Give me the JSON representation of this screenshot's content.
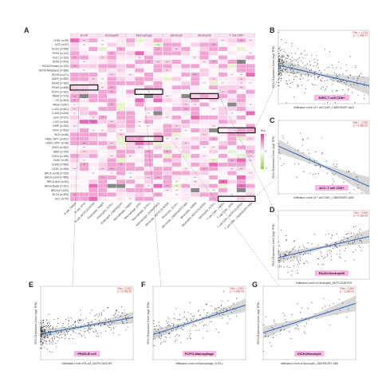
{
  "panel_letters": {
    "A": "A",
    "B": "B",
    "C": "C",
    "D": "D",
    "E": "E",
    "F": "F",
    "G": "G"
  },
  "heatmap": {
    "column_groups": [
      "B cell",
      "Eosinophil",
      "Macrophage",
      "Monocyte",
      "Neutrophil",
      "T cell CD8+"
    ],
    "group_spans": [
      3,
      3,
      4,
      3,
      3,
      4
    ],
    "rows": [
      "CHOL (n=36)",
      "UCS (n=57)",
      "UCEC (n=545)",
      "THYM (n=120)",
      "TGCT (n=150)",
      "STAD (n=415)",
      "SKCM-Primary (n=103)",
      "SKCM-Metastasis (n=368)",
      "SKCM (n=471)",
      "SARC (n=260)",
      "READ (n=166)",
      "PRAD (n=498)",
      "PCPG (n=181)",
      "PAAD (n=179)",
      "OV (n=303)",
      "MESO (n=87)",
      "LUSC (n=501)",
      "LUAD (n=515)",
      "LIHC (n=371)",
      "LGG (n=516)",
      "KIRP (n=290)",
      "KIRC (n=533)",
      "KICH (n=66)",
      "HNSC-HPV- (n=422)",
      "HNSC-HPV+ (n=98)",
      "HNSC (n=522)",
      "GBM (n=153)",
      "ESCA (n=185)",
      "DLBC (n=48)",
      "COAD (n=458)",
      "CESC (n=306)",
      "BRCA-LumB (n=219)",
      "BRCA-LumA (n=568)",
      "BRCA-Her2 (n=82)",
      "BRCA-Basal (n=191)",
      "BRCA (n=1100)",
      "BLCA (n=408)",
      "ACC (n=79)"
    ],
    "columns": [
      "B cell_TIMER",
      "B cell_EPIC",
      "B cell_MCPCOUNTER",
      "Eosinophil_TIMER",
      "Eosinophil_XCELL",
      "Eosinophil_CIBERSORT",
      "Macrophage_TIMER",
      "Macrophage_EPIC",
      "Macrophage_XCELL",
      "Macrophage_QUANTISEQ",
      "Monocyte_MCPCOUNTER",
      "Monocyte_XCELL",
      "Monocyte_CIBERSORT-ABS",
      "Neutrophil_TIMER",
      "Neutrophil_MCPCOUNTER",
      "Neutrophil_XCELL",
      "T cell CD8+_TIMER",
      "T cell CD8+_EPIC",
      "T cell CD8+_MCPCOUNTER",
      "T cell CD8+_CIBERSORT-ABS"
    ],
    "legend": {
      "title": "Rho",
      "max": "1",
      "zero": "0",
      "min": "-1"
    }
  },
  "scatter_panels": [
    {
      "id": "B",
      "label": "KIRC-T cell CD8+",
      "xlabel": "Infiltration Level of T cell CD8+_CIBERSORT-ABS",
      "ylabel": "FDX1 Expression Level (log2 TPM)",
      "annot1": "Rho = -0.234",
      "annot2": "p = 1.45e-07",
      "xlim": [
        0,
        0.25
      ],
      "ylim": [
        2.5,
        6.5
      ],
      "n": 320,
      "slope": -4.5,
      "intercept": 4.6,
      "spread": 0.55
    },
    {
      "id": "C",
      "label": "ACC-T cell CD8+",
      "xlabel": "Infiltration Level of T cell CD8+_CIBERSORT-ABS",
      "ylabel": "FDX1 Expression Level (log2 TPM)",
      "annot1": "Rho = -0.335",
      "annot2": "p = 3.45e-03",
      "xlim": [
        0,
        0.04
      ],
      "ylim": [
        3,
        7
      ],
      "n": 70,
      "slope": -55,
      "intercept": 5.6,
      "spread": 0.55
    },
    {
      "id": "D",
      "label": "PAAD-Neutrophil",
      "xlabel": "Infiltration Level of Neutrophil_MCPCOUNTER",
      "ylabel": "FDX1 Expression Level (log2 TPM)",
      "annot1": "Rho = 0.309",
      "annot2": "p = 4.28e-05",
      "xlim": [
        0,
        12
      ],
      "ylim": [
        3,
        6.5
      ],
      "n": 170,
      "slope": 0.09,
      "intercept": 4.1,
      "spread": 0.4
    },
    {
      "id": "E",
      "label": "PRAD-B cell",
      "xlabel": "Infiltration Level of B cell_MCPCOUNTER",
      "ylabel": "FDX1 Expression Level (log2 TPM)",
      "annot1": "Rho = 0.262",
      "annot2": "p = 5.95e-08",
      "xlim": [
        0,
        30
      ],
      "ylim": [
        3,
        7
      ],
      "n": 380,
      "slope": 0.03,
      "intercept": 4.4,
      "spread": 0.35
    },
    {
      "id": "F",
      "label": "PCPG-Macrophage",
      "xlabel": "Infiltration Level of Macrophage_XCELL",
      "ylabel": "FDX1 Expression Level (log2 TPM)",
      "annot1": "Rho = 0.291",
      "annot2": "p = 6.64e-05",
      "xlim": [
        0,
        0.1
      ],
      "ylim": [
        4,
        7.5
      ],
      "n": 170,
      "slope": 14,
      "intercept": 5.2,
      "spread": 0.35
    },
    {
      "id": "G",
      "label": "KICH-Monocyte",
      "xlabel": "Infiltration Level of Monocyte_CIBERSORT-ABS",
      "ylabel": "FDX1 Expression Level (log2 TPM)",
      "annot1": "Rho = 0.393",
      "annot2": "p = 1.33e-03",
      "xlim": [
        0,
        0.06
      ],
      "ylim": [
        3,
        6
      ],
      "n": 62,
      "slope": 20,
      "intercept": 4.1,
      "spread": 0.35
    }
  ],
  "chart_data": {
    "type": "heatmap",
    "title": "",
    "xlabel": "",
    "ylabel": "",
    "value_range": [
      -1,
      1
    ]
  },
  "colors": {
    "pos": "#e0409a",
    "neg": "#9ccc50",
    "na": "#888888",
    "fit": "#2f62b8",
    "ci": "#c8c8c8",
    "point": "#222222",
    "label_bg": "#f8b8e4",
    "box": "#000000"
  }
}
